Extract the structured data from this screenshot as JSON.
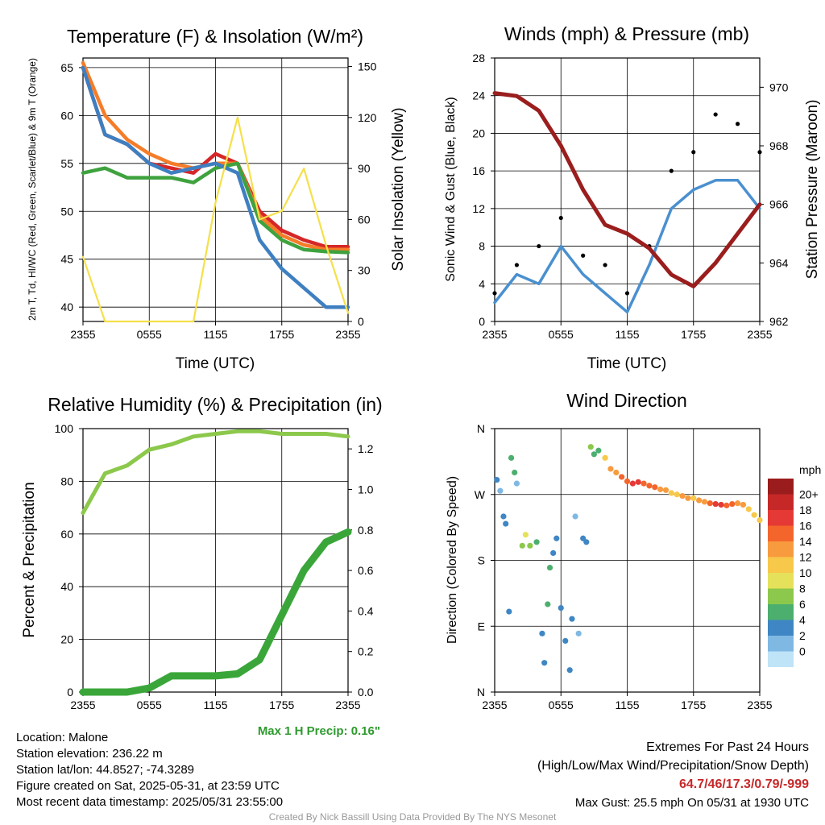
{
  "panels": {
    "temp": {
      "title": "Temperature (F) & Insolation (W/m²)",
      "ylabel_left": "2m T, Td, HI/WC (Red, Green, Scarlet/Blue) & 9m T (Orange)",
      "ylabel_right": "Solar Insolation (Yellow)",
      "xlabel": "Time (UTC)",
      "yticks_left": [
        "65",
        "60",
        "55",
        "50",
        "45",
        "40"
      ],
      "yticks_right": [
        "150",
        "120",
        "90",
        "60",
        "30",
        "0"
      ],
      "xticks": [
        "2355",
        "0555",
        "1155",
        "1755",
        "2355"
      ]
    },
    "wind": {
      "title": "Winds (mph) & Pressure (mb)",
      "ylabel_left": "Sonic Wind & Gust (Blue, Black)",
      "ylabel_right": "Station Pressure (Maroon)",
      "xlabel": "Time (UTC)",
      "yticks_left": [
        "28",
        "24",
        "20",
        "16",
        "12",
        "8",
        "4",
        "0"
      ],
      "yticks_right": [
        "970",
        "968",
        "966",
        "964",
        "962"
      ],
      "xticks": [
        "2355",
        "0555",
        "1155",
        "1755",
        "2355"
      ]
    },
    "rh": {
      "title": "Relative Humidity (%) & Precipitation (in)",
      "ylabel_left": "Percent & Precipitation",
      "yticks_left": [
        "100",
        "80",
        "60",
        "40",
        "20",
        "0"
      ],
      "yticks_right": [
        "1.2",
        "1.0",
        "0.8",
        "0.6",
        "0.4",
        "0.2",
        "0.0"
      ],
      "xticks": [
        "2355",
        "0555",
        "1155",
        "1755",
        "2355"
      ],
      "max_precip": "Max 1 H Precip: 0.16\""
    },
    "dir": {
      "title": "Wind Direction",
      "ylabel_left": "Direction (Colored By Speed)",
      "yticks_left": [
        "N",
        "W",
        "S",
        "E",
        "N"
      ],
      "xticks": [
        "2355",
        "0555",
        "1155",
        "1755",
        "2355"
      ],
      "legend_title": "mph",
      "legend_labels": [
        "20+",
        "18",
        "16",
        "14",
        "12",
        "10",
        "8",
        "6",
        "4",
        "2",
        "0"
      ],
      "legend_colors": [
        "#9b1c1c",
        "#c62828",
        "#e53935",
        "#f4652c",
        "#f89b3f",
        "#f7c84a",
        "#e6e15a",
        "#8cc84b",
        "#4caf6e",
        "#3f86c4",
        "#7fb8e3",
        "#bfe3f7"
      ]
    }
  },
  "station": {
    "location": "Location: Malone",
    "elevation": "Station elevation: 236.22 m",
    "latlon": "Station lat/lon: 44.8527; -74.3289",
    "created": "Figure created on Sat, 2025-05-31, at 23:59 UTC",
    "recent": "Most recent data timestamp: 2025/05/31 23:55:00"
  },
  "extremes": {
    "title": "Extremes For Past 24 Hours",
    "subtitle": "(High/Low/Max Wind/Precipitation/Snow Depth)",
    "values": "64.7/46/17.3/0.79/-999",
    "gust": "Max Gust: 25.5 mph On 05/31 at 1930 UTC"
  },
  "footer": "Created By Nick Bassill Using Data Provided By The NYS Mesonet",
  "chart_data": [
    {
      "type": "line",
      "title": "Temperature (F) & Insolation (W/m²)",
      "x": [
        0,
        2,
        4,
        6,
        8,
        10,
        12,
        14,
        16,
        18,
        20,
        22,
        24
      ],
      "xticklabels": [
        "2355",
        "0555",
        "1155",
        "1755",
        "2355"
      ],
      "ylim": [
        38.5,
        66
      ],
      "ylim_right": [
        0,
        155
      ],
      "series": [
        {
          "name": "2m T",
          "color": "#d62728",
          "values": [
            65,
            58,
            57,
            55,
            54.5,
            54,
            56,
            55,
            50,
            48,
            47,
            46.3,
            46.3
          ]
        },
        {
          "name": "9m T",
          "color": "#f57c28",
          "values": [
            65.5,
            60,
            57.5,
            56,
            55,
            54.5,
            55,
            55,
            49.5,
            47.5,
            46.5,
            46,
            46
          ]
        },
        {
          "name": "Td",
          "color": "#3ea23e",
          "values": [
            54,
            54.5,
            53.5,
            53.5,
            53.5,
            53,
            54.5,
            55,
            49,
            47,
            46,
            45.8,
            45.7
          ]
        },
        {
          "name": "HI/WC",
          "color": "#3e7fc1",
          "values": [
            65,
            58,
            57,
            55,
            54,
            54.5,
            55,
            54,
            47,
            44,
            42,
            40,
            40
          ]
        },
        {
          "name": "Solar Insolation",
          "axis": "right",
          "color": "#f5e04a",
          "values": [
            38,
            0,
            0,
            0,
            0,
            0,
            70,
            120,
            60,
            65,
            90,
            45,
            5
          ]
        }
      ]
    },
    {
      "type": "line",
      "title": "Winds (mph) & Pressure (mb)",
      "x": [
        0,
        2,
        4,
        6,
        8,
        10,
        12,
        14,
        16,
        18,
        20,
        22,
        24
      ],
      "xticklabels": [
        "2355",
        "0555",
        "1155",
        "1755",
        "2355"
      ],
      "ylim": [
        0,
        28
      ],
      "ylim_right": [
        962,
        971
      ],
      "series": [
        {
          "name": "Sonic Wind",
          "color": "#4a90d0",
          "values": [
            2,
            5,
            4,
            8,
            5,
            3,
            1,
            6,
            12,
            14,
            15,
            15,
            12
          ]
        },
        {
          "name": "Gust",
          "color": "#000000",
          "values": [
            3,
            6,
            8,
            11,
            7,
            6,
            3,
            8,
            16,
            18,
            22,
            21,
            18
          ]
        },
        {
          "name": "Station Pressure",
          "axis": "right",
          "color": "#9a1e1e",
          "values": [
            969.8,
            969.7,
            969.2,
            968,
            966.5,
            965.3,
            965,
            964.5,
            963.6,
            963.2,
            964,
            965,
            966
          ]
        }
      ]
    },
    {
      "type": "line",
      "title": "Relative Humidity (%) & Precipitation (in)",
      "x": [
        0,
        2,
        4,
        6,
        8,
        10,
        12,
        14,
        16,
        18,
        20,
        22,
        24
      ],
      "xticklabels": [
        "2355",
        "0555",
        "1155",
        "1755",
        "2355"
      ],
      "ylim": [
        0,
        100
      ],
      "ylim_right": [
        0,
        1.3
      ],
      "series": [
        {
          "name": "Relative Humidity",
          "color": "#8cc84b",
          "values": [
            68,
            83,
            86,
            92,
            94,
            97,
            98,
            99,
            99,
            98,
            98,
            98,
            97
          ]
        },
        {
          "name": "Precipitation",
          "axis": "right",
          "color": "#3aa63a",
          "values": [
            0,
            0,
            0,
            0.02,
            0.08,
            0.08,
            0.08,
            0.09,
            0.16,
            0.38,
            0.6,
            0.74,
            0.79
          ]
        }
      ]
    },
    {
      "type": "scatter",
      "title": "Wind Direction",
      "yticklabels": [
        "N",
        "W",
        "S",
        "E",
        "N"
      ],
      "xticklabels": [
        "2355",
        "0555",
        "1155",
        "1755",
        "2355"
      ],
      "points": [
        {
          "x": 0.2,
          "dir": 290,
          "spd": 3
        },
        {
          "x": 0.5,
          "dir": 275,
          "spd": 2
        },
        {
          "x": 0.8,
          "dir": 240,
          "spd": 4
        },
        {
          "x": 1.0,
          "dir": 230,
          "spd": 4
        },
        {
          "x": 1.3,
          "dir": 110,
          "spd": 4
        },
        {
          "x": 1.5,
          "dir": 320,
          "spd": 5
        },
        {
          "x": 1.8,
          "dir": 300,
          "spd": 6
        },
        {
          "x": 2.0,
          "dir": 285,
          "spd": 2
        },
        {
          "x": 2.5,
          "dir": 200,
          "spd": 8
        },
        {
          "x": 2.8,
          "dir": 215,
          "spd": 10
        },
        {
          "x": 3.2,
          "dir": 200,
          "spd": 7
        },
        {
          "x": 3.8,
          "dir": 205,
          "spd": 6
        },
        {
          "x": 4.3,
          "dir": 80,
          "spd": 4
        },
        {
          "x": 4.5,
          "dir": 40,
          "spd": 4
        },
        {
          "x": 4.8,
          "dir": 120,
          "spd": 6
        },
        {
          "x": 5.0,
          "dir": 170,
          "spd": 5
        },
        {
          "x": 5.3,
          "dir": 190,
          "spd": 4
        },
        {
          "x": 5.6,
          "dir": 210,
          "spd": 3
        },
        {
          "x": 6.0,
          "dir": 115,
          "spd": 4
        },
        {
          "x": 6.4,
          "dir": 70,
          "spd": 3
        },
        {
          "x": 6.8,
          "dir": 30,
          "spd": 4
        },
        {
          "x": 7.0,
          "dir": 100,
          "spd": 3
        },
        {
          "x": 7.3,
          "dir": 240,
          "spd": 1
        },
        {
          "x": 7.6,
          "dir": 80,
          "spd": 2
        },
        {
          "x": 8.0,
          "dir": 210,
          "spd": 3
        },
        {
          "x": 8.3,
          "dir": 205,
          "spd": 4
        },
        {
          "x": 8.7,
          "dir": 335,
          "spd": 7
        },
        {
          "x": 9.0,
          "dir": 325,
          "spd": 6
        },
        {
          "x": 9.4,
          "dir": 330,
          "spd": 6
        },
        {
          "x": 10.0,
          "dir": 320,
          "spd": 12
        },
        {
          "x": 10.5,
          "dir": 305,
          "spd": 13
        },
        {
          "x": 11.0,
          "dir": 300,
          "spd": 14
        },
        {
          "x": 11.5,
          "dir": 294,
          "spd": 16
        },
        {
          "x": 12.0,
          "dir": 288,
          "spd": 16
        },
        {
          "x": 12.5,
          "dir": 285,
          "spd": 18
        },
        {
          "x": 13.0,
          "dir": 287,
          "spd": 17
        },
        {
          "x": 13.5,
          "dir": 285,
          "spd": 16
        },
        {
          "x": 14.0,
          "dir": 282,
          "spd": 15
        },
        {
          "x": 14.5,
          "dir": 280,
          "spd": 15
        },
        {
          "x": 15.0,
          "dir": 277,
          "spd": 13
        },
        {
          "x": 15.5,
          "dir": 276,
          "spd": 14
        },
        {
          "x": 16.0,
          "dir": 272,
          "spd": 12
        },
        {
          "x": 16.5,
          "dir": 270,
          "spd": 12
        },
        {
          "x": 17.0,
          "dir": 268,
          "spd": 14
        },
        {
          "x": 17.5,
          "dir": 265,
          "spd": 13
        },
        {
          "x": 18.0,
          "dir": 265,
          "spd": 12
        },
        {
          "x": 18.5,
          "dir": 262,
          "spd": 13
        },
        {
          "x": 19.0,
          "dir": 260,
          "spd": 13
        },
        {
          "x": 19.5,
          "dir": 258,
          "spd": 16
        },
        {
          "x": 20.0,
          "dir": 257,
          "spd": 17
        },
        {
          "x": 20.5,
          "dir": 256,
          "spd": 17
        },
        {
          "x": 21.0,
          "dir": 255,
          "spd": 16
        },
        {
          "x": 21.5,
          "dir": 257,
          "spd": 15
        },
        {
          "x": 22.0,
          "dir": 258,
          "spd": 14
        },
        {
          "x": 22.5,
          "dir": 256,
          "spd": 13
        },
        {
          "x": 23.0,
          "dir": 250,
          "spd": 12
        },
        {
          "x": 23.5,
          "dir": 242,
          "spd": 12
        },
        {
          "x": 24.0,
          "dir": 235,
          "spd": 12
        }
      ]
    }
  ]
}
